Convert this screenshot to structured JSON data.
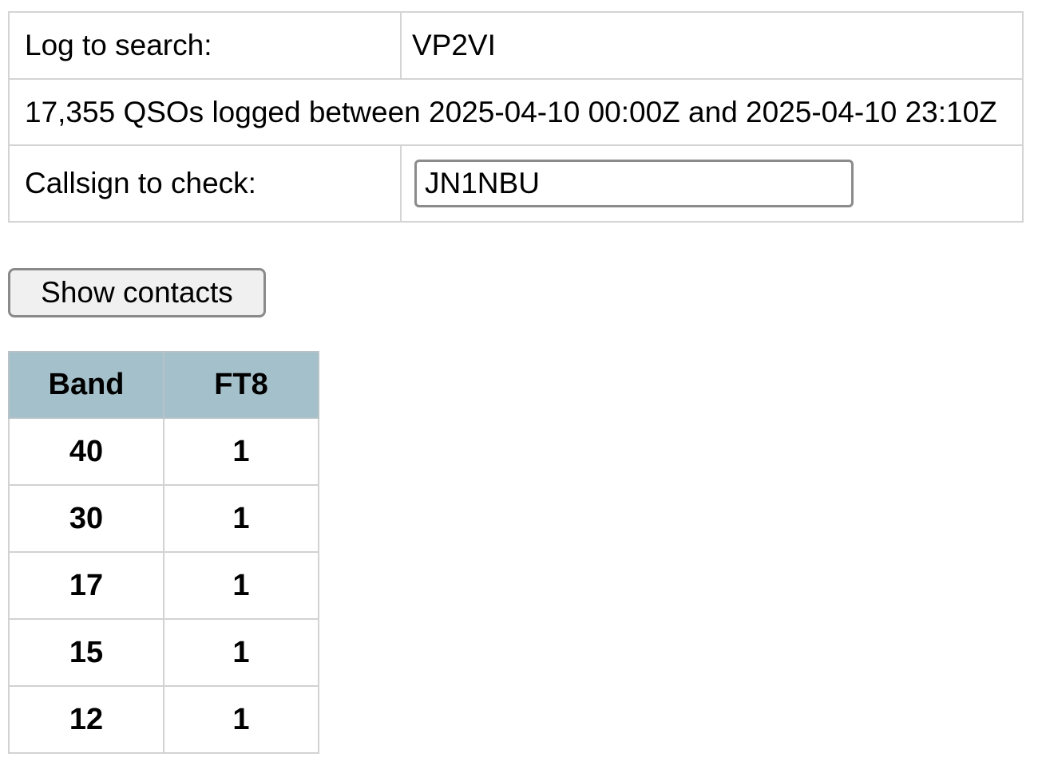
{
  "search_form": {
    "log_label": "Log to search:",
    "log_value": "VP2VI",
    "qso_summary": "17,355 QSOs logged between 2025-04-10 00:00Z and 2025-04-10 23:10Z",
    "callsign_label": "Callsign to check:",
    "callsign_value": "JN1NBU",
    "show_contacts_label": "Show contacts"
  },
  "results_table": {
    "header_bg": "#a4c0ca",
    "columns": [
      "Band",
      "FT8"
    ],
    "rows": [
      [
        "40",
        "1"
      ],
      [
        "30",
        "1"
      ],
      [
        "17",
        "1"
      ],
      [
        "15",
        "1"
      ],
      [
        "12",
        "1"
      ]
    ]
  }
}
